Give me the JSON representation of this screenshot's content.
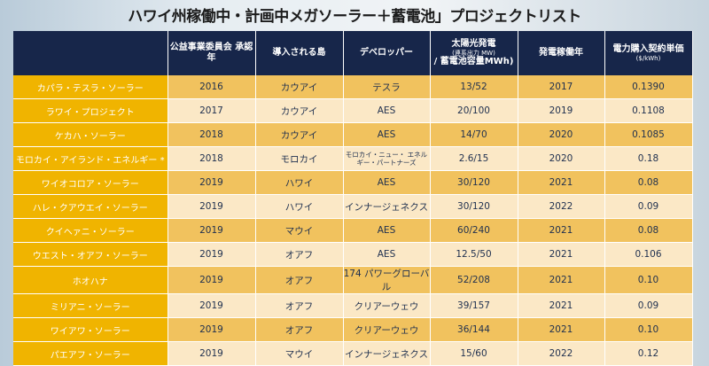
{
  "title": "ハワイ州稼働中・計画中メガソーラー＋蓄電池」プロジェクトリスト",
  "colors": {
    "header_bg": "#17264a",
    "name_col": "#f0b400",
    "row_odd": "#f1c25e",
    "row_even": "#fbe8c6",
    "text": "#1e2f4f"
  },
  "headers": [
    {
      "main": "",
      "sub": ""
    },
    {
      "main": "公益事業委員会 承認年",
      "sub": ""
    },
    {
      "main": "導入される島",
      "sub": ""
    },
    {
      "main": "デベロッパー",
      "sub": ""
    },
    {
      "main": "太陽光発電",
      "sub": "(連系出力 MW)",
      "main2": "/ 蓄電池容量MWh)"
    },
    {
      "main": "発電稼働年",
      "sub": ""
    },
    {
      "main": "電力購入契約単価",
      "sub": "($/kWh)"
    }
  ],
  "rows": [
    [
      "カパラ・テスラ・ソーラー",
      "2016",
      "カウアイ",
      "テスラ",
      "13/52",
      "2017",
      "0.1390"
    ],
    [
      "ラワイ・プロジェクト",
      "2017",
      "カウアイ",
      "AES",
      "20/100",
      "2019",
      "0.1108"
    ],
    [
      "ケカハ・ソーラー",
      "2018",
      "カウアイ",
      "AES",
      "14/70",
      "2020",
      "0.1085"
    ],
    [
      "モロカイ・アイランド・エネルギー *",
      "2018",
      "モロカイ",
      "モロカイ・ニュー・ エネルギー・パートナーズ",
      "2.6/15",
      "2020",
      "0.18"
    ],
    [
      "ワイオコロア・ソーラー",
      "2019",
      "ハワイ",
      "AES",
      "30/120",
      "2021",
      "0.08"
    ],
    [
      "ハレ・クアウエイ・ソーラー",
      "2019",
      "ハワイ",
      "インナージェネクス",
      "30/120",
      "2022",
      "0.09"
    ],
    [
      "クイヘァニ・ソーラー",
      "2019",
      "マウイ",
      "AES",
      "60/240",
      "2021",
      "0.08"
    ],
    [
      "ウエスト・オアフ・ソーラー",
      "2019",
      "オアフ",
      "AES",
      "12.5/50",
      "2021",
      "0.106"
    ],
    [
      "ホオハナ",
      "2019",
      "オアフ",
      "174 パワーグローバル",
      "52/208",
      "2021",
      "0.10"
    ],
    [
      "ミリアニ・ソーラー",
      "2019",
      "オアフ",
      "クリアーウェウ",
      "39/157",
      "2021",
      "0.09"
    ],
    [
      "ワイアワ・ソーラー",
      "2019",
      "オアフ",
      "クリアーウェウ",
      "36/144",
      "2021",
      "0.10"
    ],
    [
      "パエアフ・ソーラー",
      "2019",
      "マウイ",
      "インナージェネクス",
      "15/60",
      "2022",
      "0.12"
    ]
  ]
}
